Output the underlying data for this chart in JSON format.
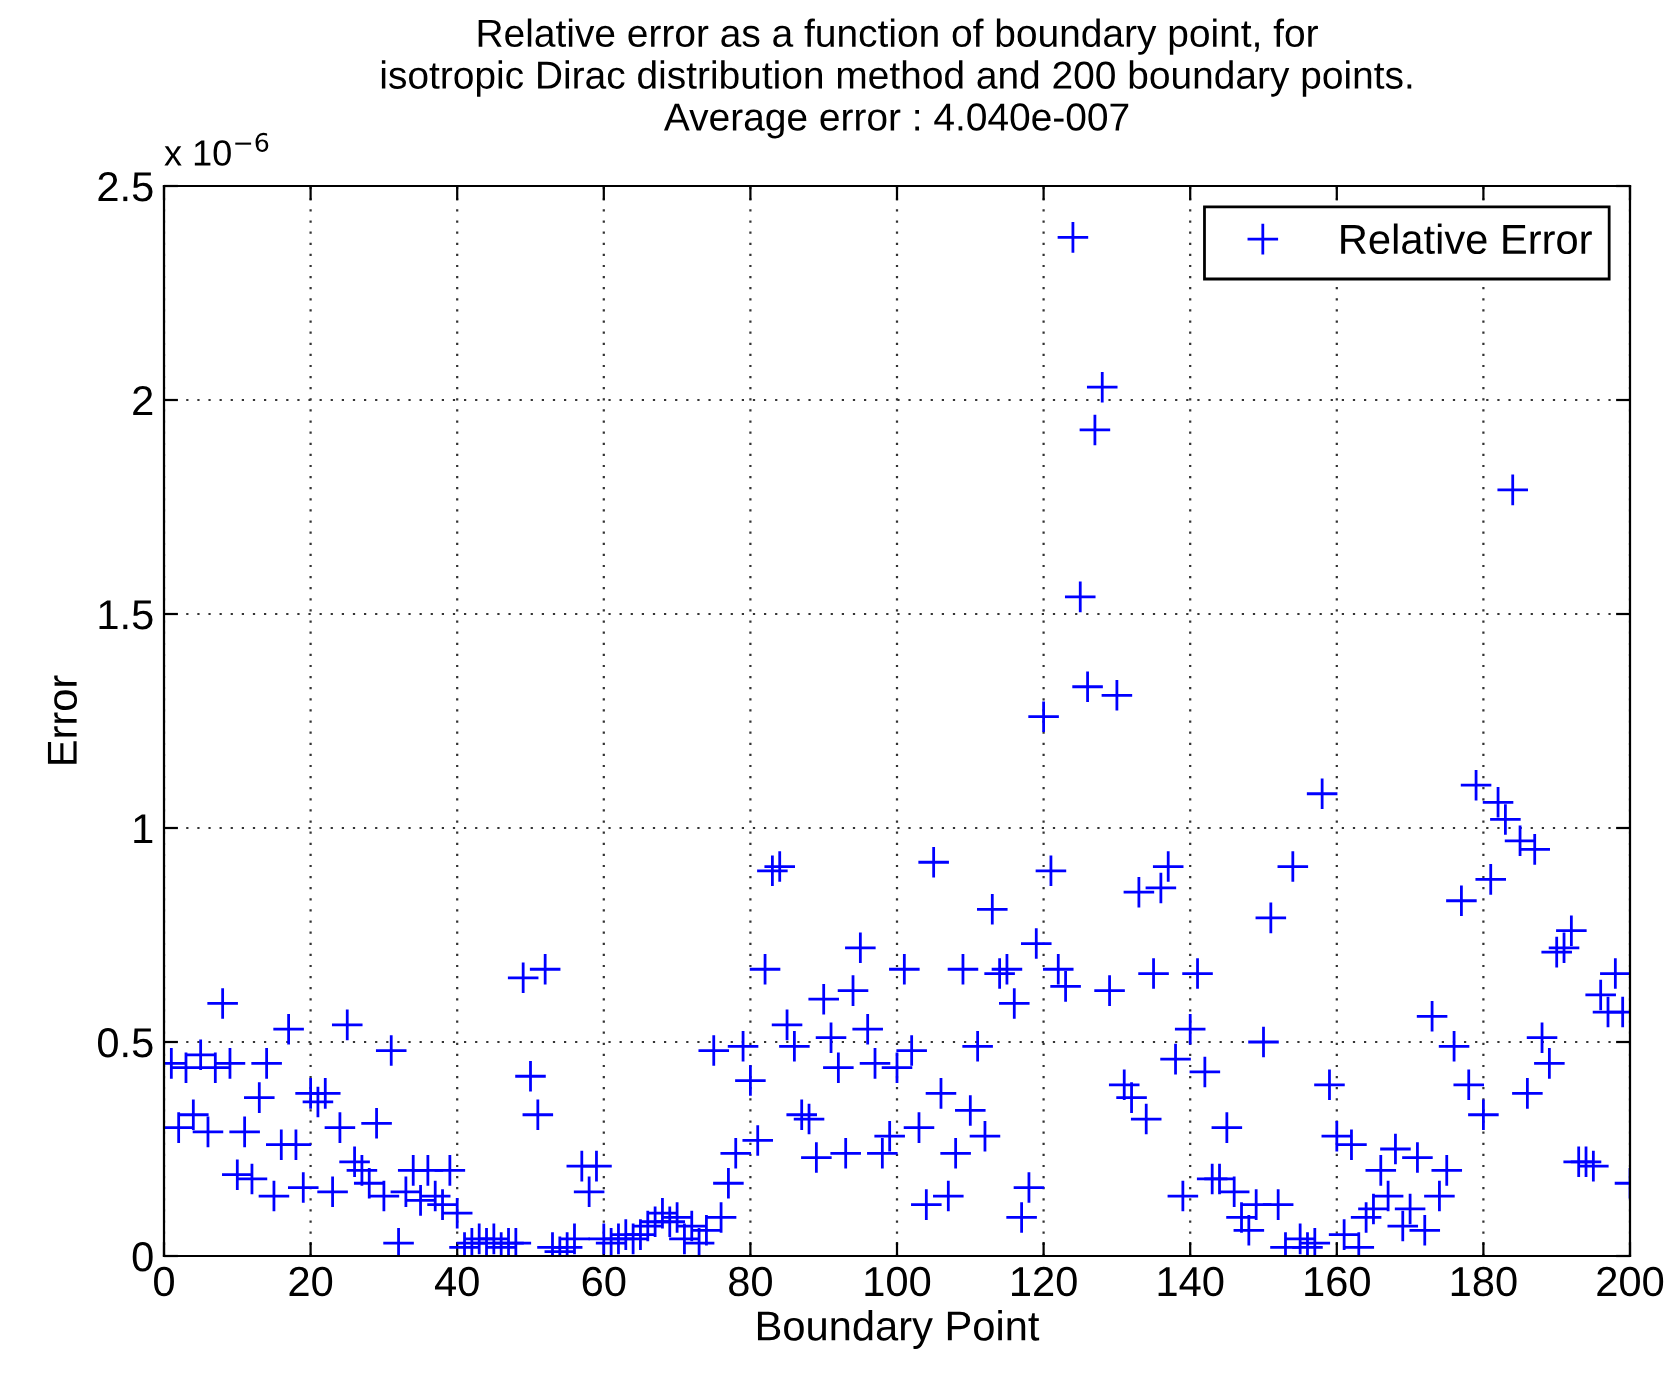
{
  "chart_data": {
    "type": "scatter",
    "title": "Relative error as a function of boundary point, for\nisotropic Dirac distribution method and 200 boundary points.\nAverage error : 4.040e-007",
    "xlabel": "Boundary Point",
    "ylabel": "Error",
    "annotations": [
      "x 10$^{−6}$"
    ],
    "x": [
      1,
      2,
      3,
      4,
      5,
      6,
      7,
      8,
      9,
      10,
      11,
      12,
      13,
      14,
      15,
      16,
      17,
      18,
      19,
      20,
      21,
      22,
      23,
      24,
      25,
      26,
      27,
      28,
      29,
      30,
      31,
      32,
      33,
      34,
      35,
      36,
      37,
      38,
      39,
      40,
      41,
      42,
      43,
      44,
      45,
      46,
      47,
      48,
      49,
      50,
      51,
      52,
      53,
      54,
      55,
      56,
      57,
      58,
      59,
      60,
      61,
      62,
      63,
      64,
      65,
      66,
      67,
      68,
      69,
      70,
      71,
      72,
      73,
      74,
      75,
      76,
      77,
      78,
      79,
      80,
      81,
      82,
      83,
      84,
      85,
      86,
      87,
      88,
      89,
      90,
      91,
      92,
      93,
      94,
      95,
      96,
      97,
      98,
      99,
      100,
      101,
      102,
      103,
      104,
      105,
      106,
      107,
      108,
      109,
      110,
      111,
      112,
      113,
      114,
      115,
      116,
      117,
      118,
      119,
      120,
      121,
      122,
      123,
      124,
      125,
      126,
      127,
      128,
      129,
      130,
      131,
      132,
      133,
      134,
      135,
      136,
      137,
      138,
      139,
      140,
      141,
      142,
      143,
      144,
      145,
      146,
      147,
      148,
      149,
      150,
      151,
      152,
      153,
      154,
      155,
      156,
      157,
      158,
      159,
      160,
      161,
      162,
      163,
      164,
      165,
      166,
      167,
      168,
      169,
      170,
      171,
      172,
      173,
      174,
      175,
      176,
      177,
      178,
      179,
      180,
      181,
      182,
      183,
      184,
      185,
      186,
      187,
      188,
      189,
      190,
      191,
      192,
      193,
      194,
      195,
      196,
      197,
      198,
      199,
      200
    ],
    "series": [
      {
        "name": "Relative Error",
        "color": "#0000ff",
        "values": [
          0.45,
          0.3,
          0.44,
          0.33,
          0.47,
          0.29,
          0.44,
          0.59,
          0.45,
          0.19,
          0.29,
          0.18,
          0.37,
          0.45,
          0.14,
          0.26,
          0.53,
          0.26,
          0.16,
          0.38,
          0.36,
          0.38,
          0.15,
          0.3,
          0.54,
          0.22,
          0.2,
          0.17,
          0.31,
          0.14,
          0.48,
          0.03,
          0.15,
          0.2,
          0.13,
          0.2,
          0.14,
          0.12,
          0.2,
          0.1,
          0.02,
          0.03,
          0.04,
          0.03,
          0.04,
          0.02,
          0.03,
          0.03,
          0.65,
          0.42,
          0.33,
          0.67,
          0.02,
          0.01,
          0.02,
          0.04,
          0.21,
          0.15,
          0.21,
          0.04,
          0.03,
          0.04,
          0.05,
          0.04,
          0.05,
          0.07,
          0.08,
          0.1,
          0.08,
          0.09,
          0.04,
          0.07,
          0.03,
          0.06,
          0.48,
          0.09,
          0.17,
          0.24,
          0.49,
          0.41,
          0.27,
          0.67,
          0.9,
          0.91,
          0.54,
          0.49,
          0.33,
          0.32,
          0.23,
          0.6,
          0.51,
          0.44,
          0.24,
          0.62,
          0.72,
          0.53,
          0.45,
          0.24,
          0.28,
          0.44,
          0.67,
          0.48,
          0.3,
          0.12,
          0.92,
          0.38,
          0.14,
          0.24,
          0.67,
          0.34,
          0.49,
          0.28,
          0.81,
          0.66,
          0.67,
          0.59,
          0.09,
          0.16,
          0.73,
          1.26,
          0.9,
          0.67,
          0.63,
          2.38,
          1.54,
          1.33,
          1.93,
          2.03,
          0.62,
          1.31,
          0.4,
          0.37,
          0.85,
          0.32,
          0.66,
          0.86,
          0.91,
          0.46,
          0.14,
          0.53,
          0.66,
          0.43,
          0.18,
          0.18,
          0.3,
          0.15,
          0.09,
          0.06,
          0.12,
          0.5,
          0.79,
          0.12,
          0.02,
          0.91,
          0.04,
          0.02,
          0.03,
          1.08,
          0.4,
          0.28,
          0.05,
          0.26,
          0.02,
          0.09,
          0.11,
          0.2,
          0.14,
          0.25,
          0.07,
          0.11,
          0.23,
          0.06,
          0.56,
          0.14,
          0.2,
          0.49,
          0.83,
          0.4,
          1.1,
          0.33,
          0.88,
          1.06,
          1.02,
          1.79,
          0.97,
          0.38,
          0.95,
          0.51,
          0.45,
          0.71,
          0.72,
          0.76,
          0.22,
          0.22,
          0.21,
          0.61,
          0.57,
          0.66,
          0.57,
          0.17
        ]
      }
    ],
    "xlim": [
      0,
      200
    ],
    "xticks": [
      0,
      20,
      40,
      60,
      80,
      100,
      120,
      140,
      160,
      180,
      200
    ],
    "ylim": [
      0,
      2.5
    ],
    "yticks": [
      0,
      0.5,
      1,
      1.5,
      2,
      2.5
    ],
    "grid": true,
    "legend": "top right",
    "marker": "cross",
    "line_style": "none"
  }
}
